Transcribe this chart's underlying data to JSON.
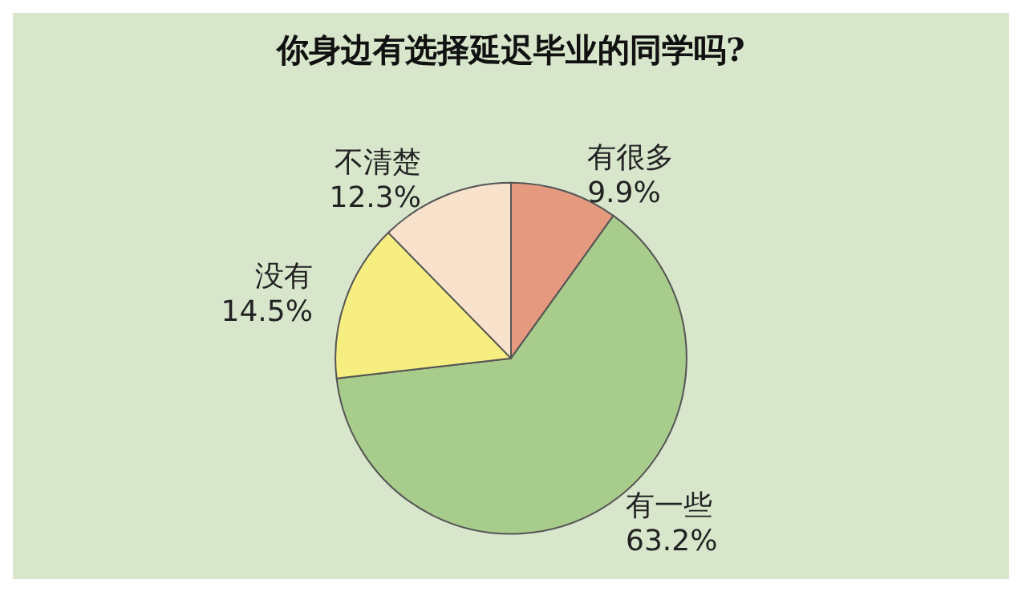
{
  "chart_data": {
    "type": "pie",
    "title": "你身边有选择延迟毕业的同学吗?",
    "categories": [
      "有很多",
      "有一些",
      "没有",
      "不清楚"
    ],
    "values": [
      9.9,
      63.2,
      14.5,
      12.3
    ],
    "colors": [
      "#e59a80",
      "#a8cc8c",
      "#f7ee82",
      "#f8e2cc"
    ],
    "value_labels": [
      "9.9%",
      "63.2%",
      "14.5%",
      "12.3%"
    ],
    "legend": false
  }
}
